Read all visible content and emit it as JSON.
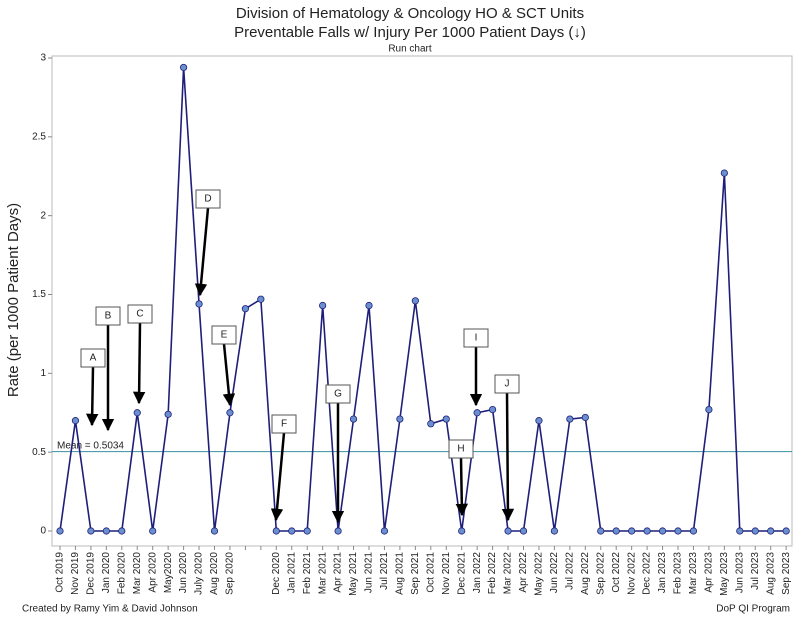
{
  "chart_data": {
    "type": "line",
    "title": "Division of Hematology & Oncology HO & SCT Units",
    "subtitle": "Preventable Falls w/ Injury Per 1000 Patient Days (↓)",
    "chart_kind": "Run chart",
    "y_label": "Rate (per 1000 Patient Days)",
    "footer_left": "Created by Ramy Yim & David Johnson",
    "footer_right": "DoP QI Program",
    "categories": [
      "Oct 2019",
      "Nov 2019",
      "Dec 2019",
      "Jan 2020",
      "Feb 2020",
      "Mar 2020",
      "Apr 2020",
      "May2020",
      "Jun 2020",
      "July 2020",
      "Aug 2020",
      "Sep 2020",
      null,
      null,
      "Dec 2020",
      "Jan 2021",
      "Feb 2021",
      "Mar 2021",
      "Apr 2021",
      "May 2021",
      "Jun 2021",
      "Jul 2021",
      "Aug 2021",
      "Sep 2021",
      "Oct 2021",
      "Nov 2021",
      "Dec 2021",
      "Jan 2022",
      "Feb 2022",
      "Mar 2022",
      "Apr 2022",
      "May 2022",
      "Jun 2022",
      "Jul 2022",
      "Aug 2022",
      "Sep 2022",
      "Oct 2022",
      "Nov 2022",
      "Dec 2022",
      "Jan 2023",
      "Feb 2023",
      "Mar 2023",
      "Apr 2023",
      "May 2023",
      "Jun 2023",
      "Jul 2023",
      "Aug 2023",
      "Sep 2023"
    ],
    "series": [
      {
        "name": "Rate",
        "color": "#1f1f7a",
        "marker_color": "#6a8fcf",
        "values": [
          0,
          0.7,
          0,
          0,
          0,
          0.75,
          0,
          0.74,
          2.94,
          1.44,
          0,
          0.75,
          1.41,
          1.47,
          0,
          0,
          0,
          1.43,
          0,
          0.71,
          1.43,
          0,
          0.71,
          1.46,
          0.68,
          0.71,
          0,
          0.75,
          0.77,
          0,
          0,
          0.7,
          0,
          0.71,
          0.72,
          0,
          0,
          0,
          0,
          0,
          0,
          0,
          0.77,
          2.27,
          0,
          0,
          0,
          0
        ]
      }
    ],
    "mean": {
      "value": 0.5034,
      "label": "Mean = 0.5034",
      "color": "#3a8fa0"
    },
    "annotations": [
      "A",
      "B",
      "C",
      "D",
      "E",
      "F",
      "G",
      "H",
      "I",
      "J"
    ],
    "ylim": [
      0,
      3
    ],
    "yticks": [
      0,
      0.5,
      1,
      1.5,
      2,
      2.5,
      3
    ]
  }
}
